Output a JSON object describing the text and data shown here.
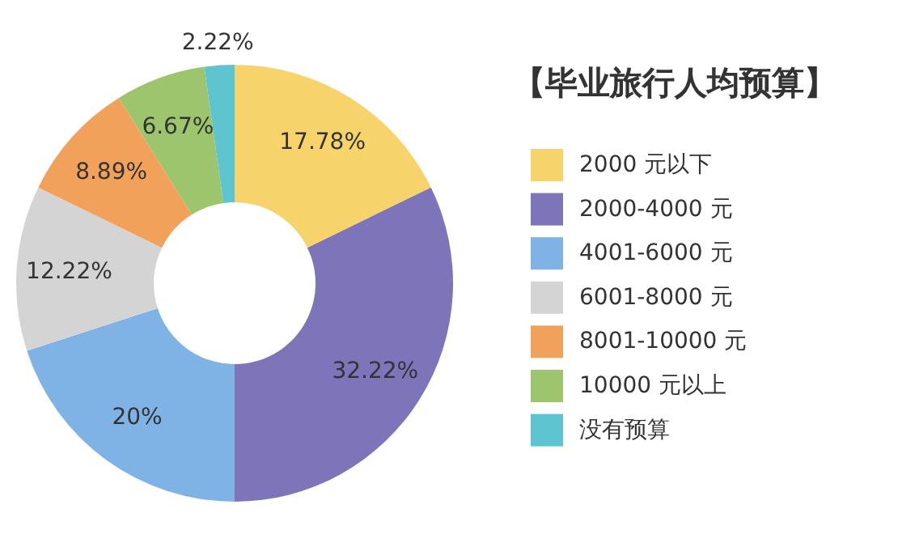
{
  "chart_data": {
    "type": "donut",
    "title": "【毕业旅行人均预算】",
    "categories": [
      "2000 元以下",
      "2000-4000 元",
      "4001-6000 元",
      "6001-8000 元",
      "8001-10000 元",
      "10000 元以上",
      "没有预算"
    ],
    "values": [
      17.78,
      32.22,
      20,
      12.22,
      8.89,
      6.67,
      2.22
    ],
    "value_labels": [
      "17.78%",
      "32.22%",
      "20%",
      "12.22%",
      "8.89%",
      "6.67%",
      "2.22%"
    ],
    "colors": [
      "#f7d36b",
      "#7d74b9",
      "#7fb3e6",
      "#d4d4d4",
      "#f2a15b",
      "#9cc56d",
      "#5ec5d0"
    ],
    "legend": "right"
  }
}
